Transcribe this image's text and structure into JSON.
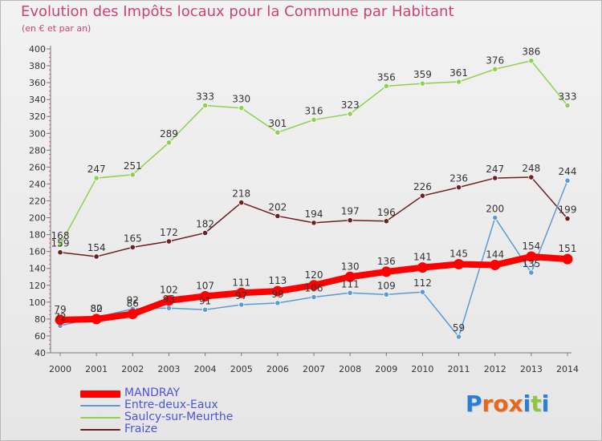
{
  "header": {
    "title": "Evolution des Impôts locaux pour la Commune par Habitant",
    "subtitle": "(en € et par an)"
  },
  "logo": {
    "text": "Proxiti"
  },
  "chart_data": {
    "type": "line",
    "title": "Evolution des Impôts locaux pour la Commune par Habitant",
    "subtitle": "(en € et par an)",
    "xlabel": "",
    "ylabel": "",
    "x": [
      "2000",
      "2001",
      "2002",
      "2003",
      "2004",
      "2005",
      "2006",
      "2007",
      "2008",
      "2009",
      "2010",
      "2011",
      "2012",
      "2013",
      "2014"
    ],
    "ylim": [
      40,
      400
    ],
    "yticks": [
      40,
      60,
      80,
      100,
      120,
      140,
      160,
      180,
      200,
      220,
      240,
      260,
      280,
      300,
      320,
      340,
      360,
      380,
      400
    ],
    "grid": false,
    "legend_position": "bottom-left",
    "series": [
      {
        "name": "MANDRAY",
        "color": "#ff0000",
        "values": [
          79,
          80,
          86,
          102,
          107,
          111,
          113,
          120,
          130,
          136,
          141,
          145,
          144,
          154,
          151
        ],
        "labels": [
          "79",
          "80",
          "86",
          "102",
          "107",
          "111",
          "113",
          "120",
          "130",
          "136",
          "141",
          "145",
          "144",
          "154",
          "151"
        ]
      },
      {
        "name": "Entre-deux-Eaux",
        "color": "#5b9bd5",
        "values": [
          72,
          82,
          92,
          93,
          91,
          97,
          99,
          106,
          111,
          109,
          112,
          59,
          200,
          135,
          244
        ],
        "labels": [
          "72",
          "82",
          "92",
          "93",
          "91",
          "97",
          "99",
          "106",
          "111",
          "109",
          "112",
          "59",
          "200",
          "135",
          "244"
        ]
      },
      {
        "name": "Saulcy-sur-Meurthe",
        "color": "#8fd14f",
        "values": [
          168,
          247,
          251,
          289,
          333,
          330,
          301,
          316,
          323,
          356,
          359,
          361,
          376,
          386,
          333
        ],
        "labels": [
          "168",
          "247",
          "251",
          "289",
          "333",
          "330",
          "301",
          "316",
          "323",
          "356",
          "359",
          "361",
          "376",
          "386",
          "333"
        ]
      },
      {
        "name": "Fraize",
        "color": "#6e1f1f",
        "values": [
          159,
          154,
          165,
          172,
          182,
          218,
          202,
          194,
          197,
          196,
          226,
          236,
          247,
          248,
          199
        ],
        "labels": [
          "159",
          "154",
          "165",
          "172",
          "182",
          "218",
          "202",
          "194",
          "197",
          "196",
          "226",
          "236",
          "247",
          "248",
          "199"
        ]
      }
    ]
  }
}
